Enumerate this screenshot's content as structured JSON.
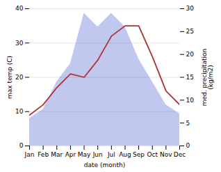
{
  "chart_data": {
    "type": "line",
    "xlabel": "date (month)",
    "ylabel": "max temp (C)",
    "y2label": "med. precipitation\n(kg/m2)",
    "categories": [
      "Jan",
      "Feb",
      "Mar",
      "Apr",
      "May",
      "Jun",
      "Jul",
      "Aug",
      "Sep",
      "Oct",
      "Nov",
      "Dec"
    ],
    "series": [
      {
        "type": "area",
        "color": "#c0c8f0",
        "axis": "y2",
        "values": [
          6,
          8,
          14,
          18,
          29,
          26,
          29,
          26,
          19,
          14,
          9,
          7
        ]
      },
      {
        "type": "line",
        "color": "#b03030",
        "axis": "y",
        "values": [
          9,
          12,
          17,
          21,
          20,
          25,
          32,
          35,
          35,
          26,
          16,
          12
        ]
      }
    ],
    "ylim": [
      0,
      40
    ],
    "yticks": [
      0,
      10,
      20,
      30,
      40
    ],
    "y2lim": [
      0,
      30
    ],
    "y2ticks": [
      0,
      5,
      10,
      15,
      20,
      25,
      30
    ],
    "grid": true
  }
}
